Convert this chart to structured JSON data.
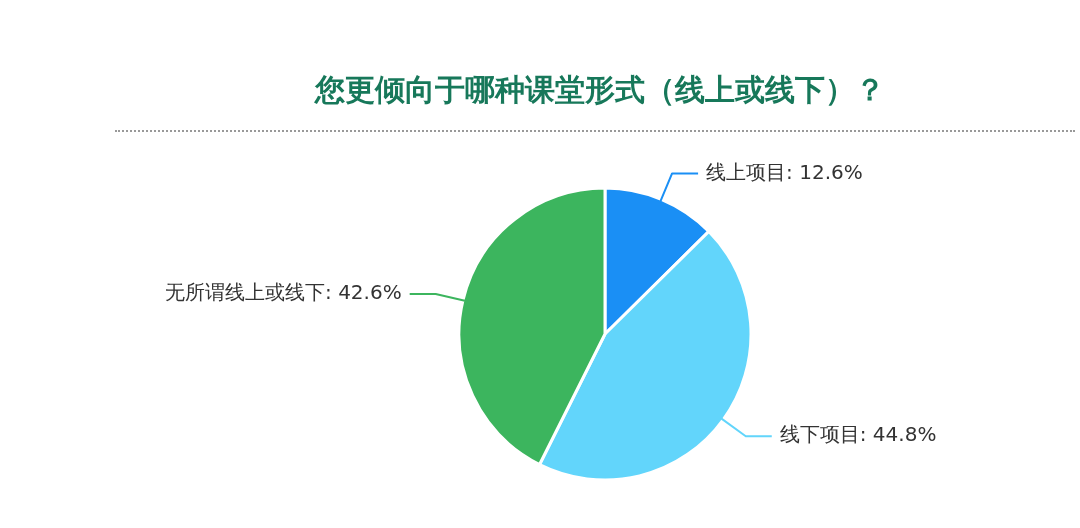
{
  "chart_data": {
    "type": "pie",
    "title": "您更倾向于哪种课堂形式（线上或线下）？",
    "categories": [
      "线上项目",
      "线下项目",
      "无所谓线上或线下"
    ],
    "values": [
      12.6,
      44.8,
      42.6
    ],
    "value_labels": [
      "12.6%",
      "44.8%",
      "42.6%"
    ],
    "colors": [
      "#1a8ff5",
      "#62d5fb",
      "#3cb55e"
    ],
    "legend": false
  }
}
